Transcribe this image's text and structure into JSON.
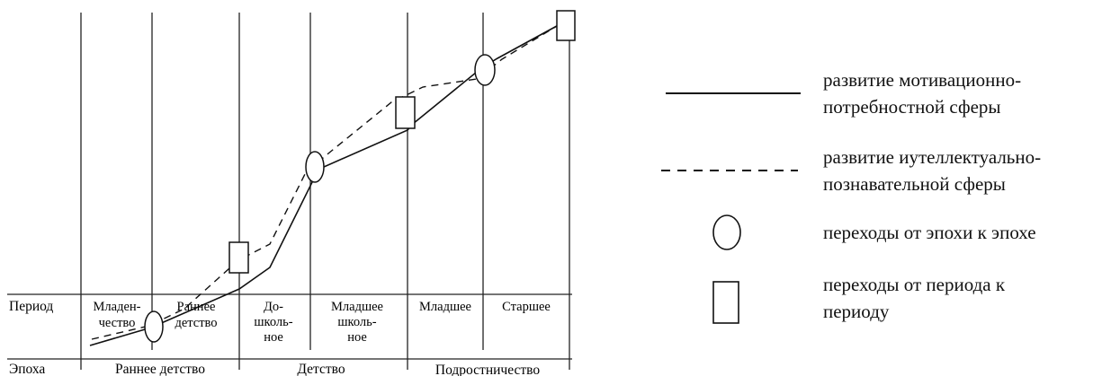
{
  "diagram": {
    "row_headers": {
      "period": "Период",
      "epoch": "Эпоха"
    },
    "periods": [
      [
        "Младен-",
        "чество"
      ],
      [
        "Раннее",
        "детство"
      ],
      [
        "До-",
        "школь-",
        "ное"
      ],
      [
        "Младшее",
        "школь-",
        "ное"
      ],
      [
        "Младшее"
      ],
      [
        "Старшее"
      ]
    ],
    "epochs": [
      "Раннее детство",
      "Детство",
      "Подростничество"
    ]
  },
  "legend": [
    {
      "symbol": "solid-line",
      "lines": [
        "развитие мотивационно-",
        "потребностной сферы"
      ]
    },
    {
      "symbol": "dashed-line",
      "lines": [
        "развитие иутеллектуально-",
        "познавательной сферы"
      ]
    },
    {
      "symbol": "ellipse",
      "lines": [
        "переходы от эпохи к эпохе"
      ]
    },
    {
      "symbol": "rectangle",
      "lines": [
        "переходы от периода к",
        "периоду"
      ]
    }
  ],
  "colors": {
    "ink": "#111111"
  }
}
